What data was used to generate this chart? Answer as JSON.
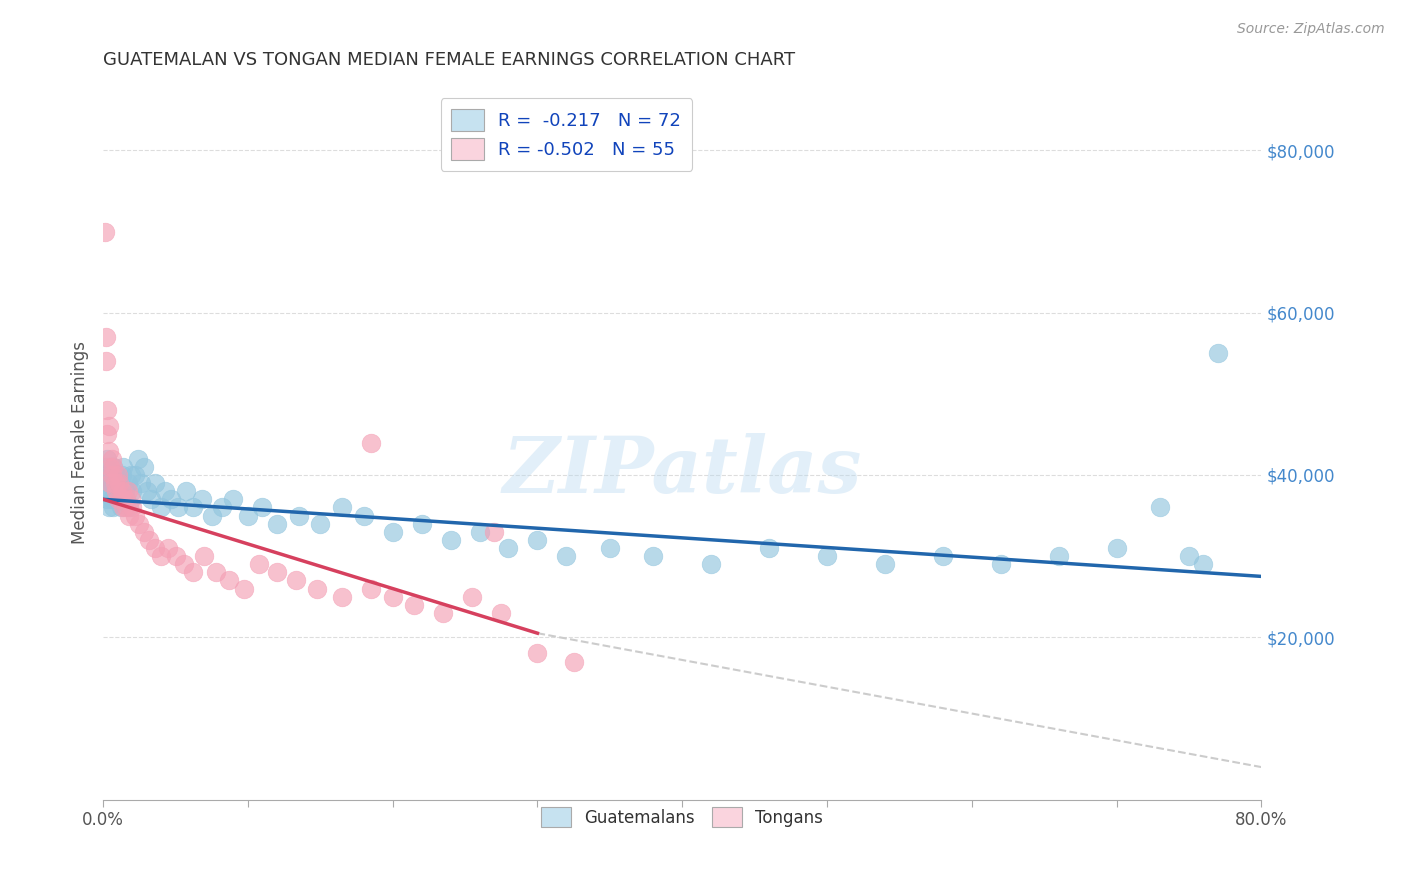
{
  "title": "GUATEMALAN VS TONGAN MEDIAN FEMALE EARNINGS CORRELATION CHART",
  "source": "Source: ZipAtlas.com",
  "ylabel": "Median Female Earnings",
  "watermark": "ZIPatlas",
  "legend_blue_r": "R =  -0.217",
  "legend_blue_n": "N = 72",
  "legend_pink_r": "R = -0.502",
  "legend_pink_n": "N = 55",
  "legend_blue_label": "Guatemalans",
  "legend_pink_label": "Tongans",
  "right_yticks": [
    "$80,000",
    "$60,000",
    "$40,000",
    "$20,000"
  ],
  "right_ytick_vals": [
    80000,
    60000,
    40000,
    20000
  ],
  "blue_color": "#92c5de",
  "blue_fill_color": "#c6e2f0",
  "pink_color": "#f4a0b5",
  "pink_fill_color": "#fad4de",
  "blue_line_color": "#2166ac",
  "pink_line_color": "#d6405e",
  "dashed_line_color": "#cccccc",
  "background_color": "#ffffff",
  "grid_color": "#dddddd",
  "title_color": "#333333",
  "source_color": "#999999",
  "right_tick_color": "#4488cc",
  "blue_scatter_x": [
    0.001,
    0.002,
    0.002,
    0.003,
    0.003,
    0.004,
    0.004,
    0.005,
    0.005,
    0.006,
    0.006,
    0.007,
    0.007,
    0.008,
    0.009,
    0.01,
    0.01,
    0.011,
    0.012,
    0.013,
    0.014,
    0.015,
    0.016,
    0.017,
    0.018,
    0.019,
    0.02,
    0.022,
    0.024,
    0.026,
    0.028,
    0.03,
    0.033,
    0.036,
    0.04,
    0.043,
    0.047,
    0.052,
    0.057,
    0.062,
    0.068,
    0.075,
    0.082,
    0.09,
    0.1,
    0.11,
    0.12,
    0.135,
    0.15,
    0.165,
    0.18,
    0.2,
    0.22,
    0.24,
    0.26,
    0.28,
    0.3,
    0.32,
    0.35,
    0.38,
    0.42,
    0.46,
    0.5,
    0.54,
    0.58,
    0.62,
    0.66,
    0.7,
    0.73,
    0.75,
    0.76,
    0.77
  ],
  "blue_scatter_y": [
    40000,
    38000,
    41000,
    37000,
    42000,
    39000,
    36000,
    40000,
    38000,
    37000,
    39000,
    41000,
    36000,
    38000,
    40000,
    37000,
    39000,
    38000,
    36000,
    40000,
    41000,
    38000,
    37000,
    39000,
    36000,
    40000,
    38000,
    40000,
    42000,
    39000,
    41000,
    38000,
    37000,
    39000,
    36000,
    38000,
    37000,
    36000,
    38000,
    36000,
    37000,
    35000,
    36000,
    37000,
    35000,
    36000,
    34000,
    35000,
    34000,
    36000,
    35000,
    33000,
    34000,
    32000,
    33000,
    31000,
    32000,
    30000,
    31000,
    30000,
    29000,
    31000,
    30000,
    29000,
    30000,
    29000,
    30000,
    31000,
    36000,
    30000,
    29000,
    55000
  ],
  "pink_scatter_x": [
    0.001,
    0.002,
    0.002,
    0.003,
    0.003,
    0.004,
    0.004,
    0.005,
    0.005,
    0.006,
    0.006,
    0.007,
    0.008,
    0.009,
    0.01,
    0.01,
    0.011,
    0.012,
    0.013,
    0.014,
    0.015,
    0.016,
    0.017,
    0.018,
    0.019,
    0.02,
    0.022,
    0.025,
    0.028,
    0.032,
    0.036,
    0.04,
    0.045,
    0.05,
    0.056,
    0.062,
    0.07,
    0.078,
    0.087,
    0.097,
    0.108,
    0.12,
    0.133,
    0.148,
    0.165,
    0.185,
    0.2,
    0.215,
    0.235,
    0.255,
    0.275,
    0.3,
    0.325,
    0.185,
    0.27
  ],
  "pink_scatter_y": [
    70000,
    57000,
    54000,
    48000,
    45000,
    46000,
    43000,
    41000,
    39000,
    42000,
    40000,
    41000,
    39000,
    38000,
    40000,
    37000,
    39000,
    37000,
    38000,
    36000,
    37000,
    36000,
    38000,
    35000,
    37000,
    36000,
    35000,
    34000,
    33000,
    32000,
    31000,
    30000,
    31000,
    30000,
    29000,
    28000,
    30000,
    28000,
    27000,
    26000,
    29000,
    28000,
    27000,
    26000,
    25000,
    26000,
    25000,
    24000,
    23000,
    25000,
    23000,
    18000,
    17000,
    44000,
    33000
  ],
  "ylim": [
    0,
    88000
  ],
  "xlim": [
    0,
    0.8
  ],
  "blue_trend_x": [
    0.0,
    0.8
  ],
  "blue_trend_y": [
    37000,
    27500
  ],
  "pink_trend_x": [
    0.0,
    0.3
  ],
  "pink_trend_y": [
    37000,
    20500
  ],
  "dashed_trend_x": [
    0.3,
    0.8
  ],
  "dashed_trend_y": [
    20500,
    4000
  ],
  "xtick_positions": [
    0.0,
    0.1,
    0.2,
    0.3,
    0.4,
    0.5,
    0.6,
    0.7,
    0.8
  ],
  "grid_ytick_vals": [
    20000,
    40000,
    60000,
    80000
  ]
}
